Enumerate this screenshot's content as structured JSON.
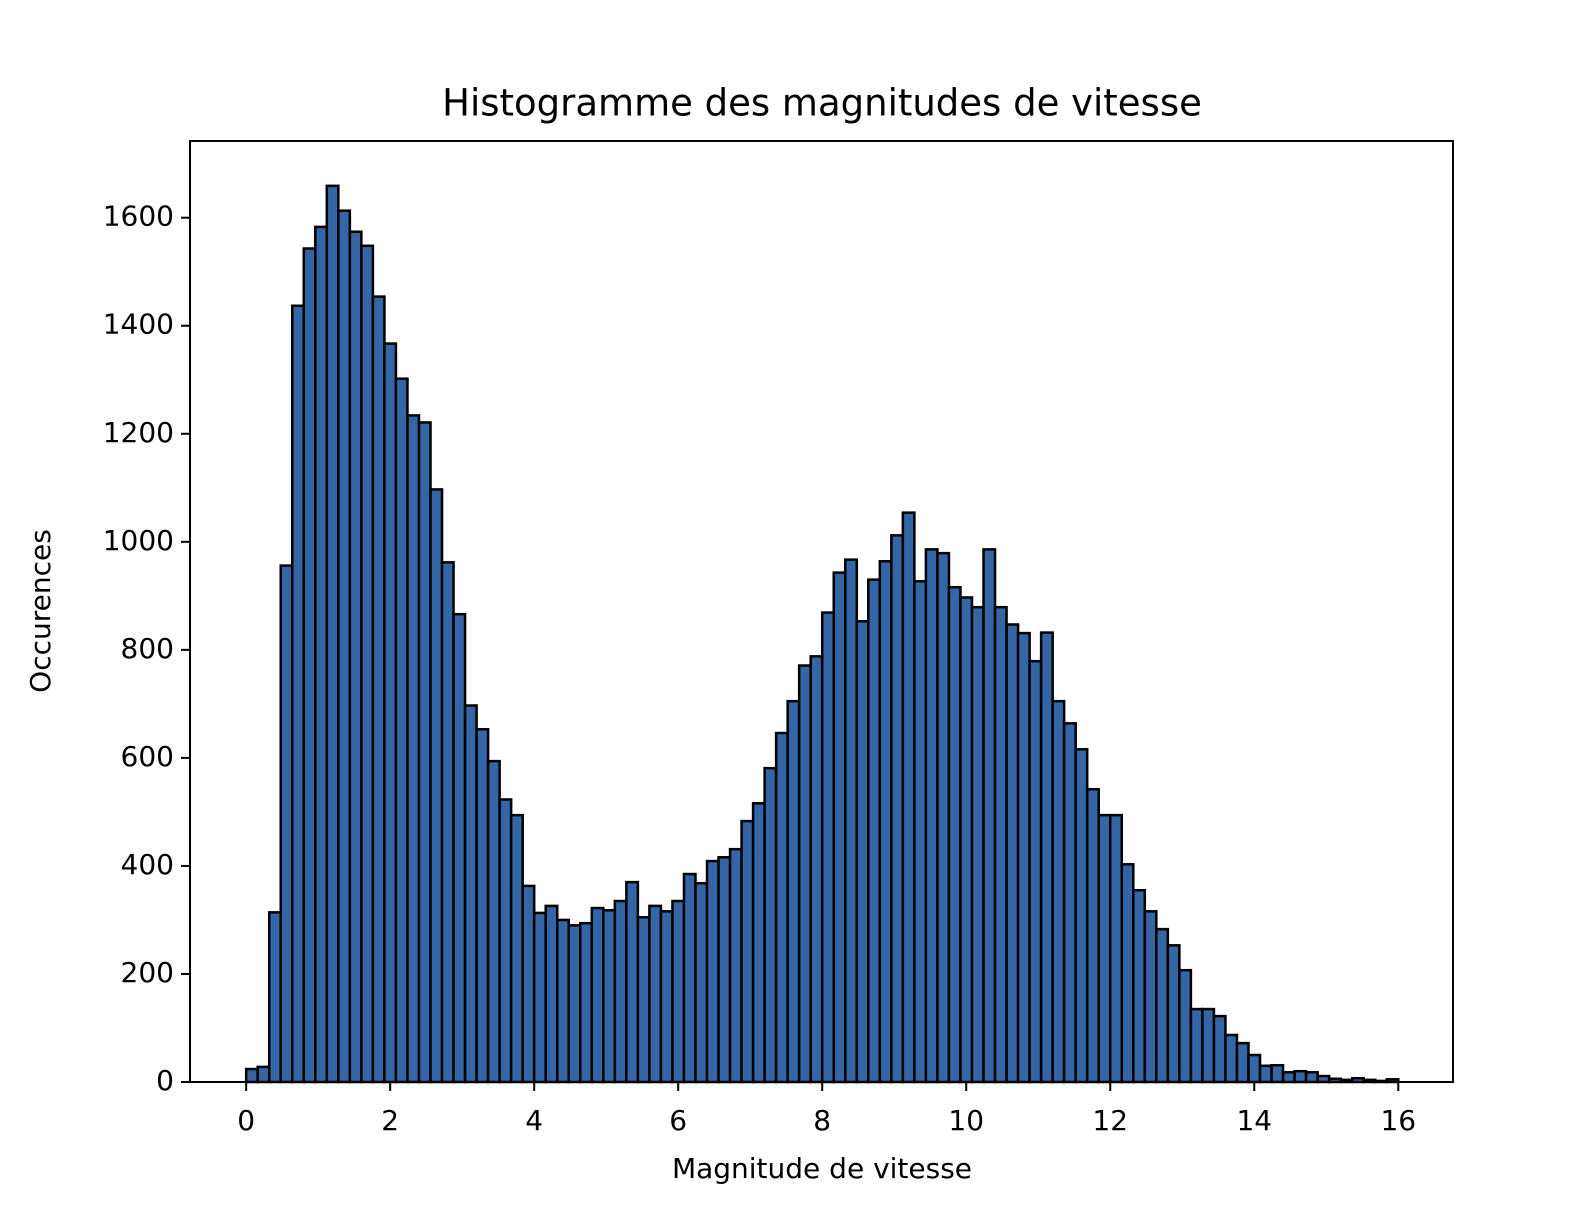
{
  "chart_data": {
    "type": "histogram",
    "title": "Histogramme des magnitudes de vitesse",
    "x_label": "Magnitude de vitesse",
    "y_label": "Occurences",
    "color": "#3465a4",
    "edgecolor": "#000000",
    "bins": [
      0,
      0.16,
      0.32,
      0.48,
      0.64,
      0.8,
      0.96,
      1.12,
      1.28,
      1.44,
      1.6,
      1.76,
      1.92,
      2.08,
      2.24,
      2.4,
      2.56,
      2.72,
      2.88,
      3.04,
      3.2,
      3.36,
      3.52,
      3.68,
      3.84,
      4,
      4.16,
      4.32,
      4.48,
      4.64,
      4.8,
      4.96,
      5.12,
      5.28,
      5.44,
      5.6,
      5.76,
      5.92,
      6.08,
      6.24,
      6.4,
      6.56,
      6.72,
      6.88,
      7.04,
      7.2,
      7.36,
      7.52,
      7.68,
      7.84,
      8,
      8.16,
      8.32,
      8.48,
      8.64,
      8.8,
      8.96,
      9.12,
      9.28,
      9.44,
      9.6,
      9.76,
      9.92,
      10.08,
      10.24,
      10.4,
      10.56,
      10.72,
      10.88,
      11.04,
      11.2,
      11.36,
      11.52,
      11.68,
      11.84,
      12,
      12.16,
      12.32,
      12.48,
      12.64,
      12.8,
      12.96,
      13.12,
      13.28,
      13.44,
      13.6,
      13.76,
      13.92,
      14.08,
      14.24,
      14.4,
      14.56,
      14.72,
      14.88,
      15.04,
      15.2,
      15.36,
      15.52,
      15.68,
      15.84,
      16
    ],
    "counts": [
      24,
      28,
      314,
      956,
      1437,
      1543,
      1583,
      1659,
      1613,
      1574,
      1548,
      1454,
      1367,
      1302,
      1234,
      1221,
      1097,
      962,
      866,
      697,
      653,
      594,
      523,
      494,
      363,
      313,
      326,
      300,
      290,
      294,
      322,
      318,
      335,
      370,
      305,
      326,
      316,
      335,
      385,
      368,
      409,
      416,
      431,
      483,
      516,
      581,
      646,
      705,
      771,
      788,
      869,
      943,
      967,
      853,
      930,
      964,
      1012,
      1054,
      927,
      986,
      979,
      916,
      897,
      879,
      986,
      879,
      847,
      831,
      779,
      832,
      705,
      664,
      616,
      542,
      494,
      494,
      403,
      355,
      316,
      283,
      253,
      207,
      135,
      135,
      122,
      87,
      72,
      50,
      30,
      31,
      18,
      20,
      18,
      11,
      6,
      4,
      7,
      4,
      2,
      5
    ],
    "xlim": [
      -0.78,
      16.76
    ],
    "ylim": [
      0,
      1742
    ],
    "xticks": [
      0,
      2,
      4,
      6,
      8,
      10,
      12,
      14,
      16
    ],
    "yticks": [
      0,
      200,
      400,
      600,
      800,
      1000,
      1200,
      1400,
      1600
    ]
  }
}
